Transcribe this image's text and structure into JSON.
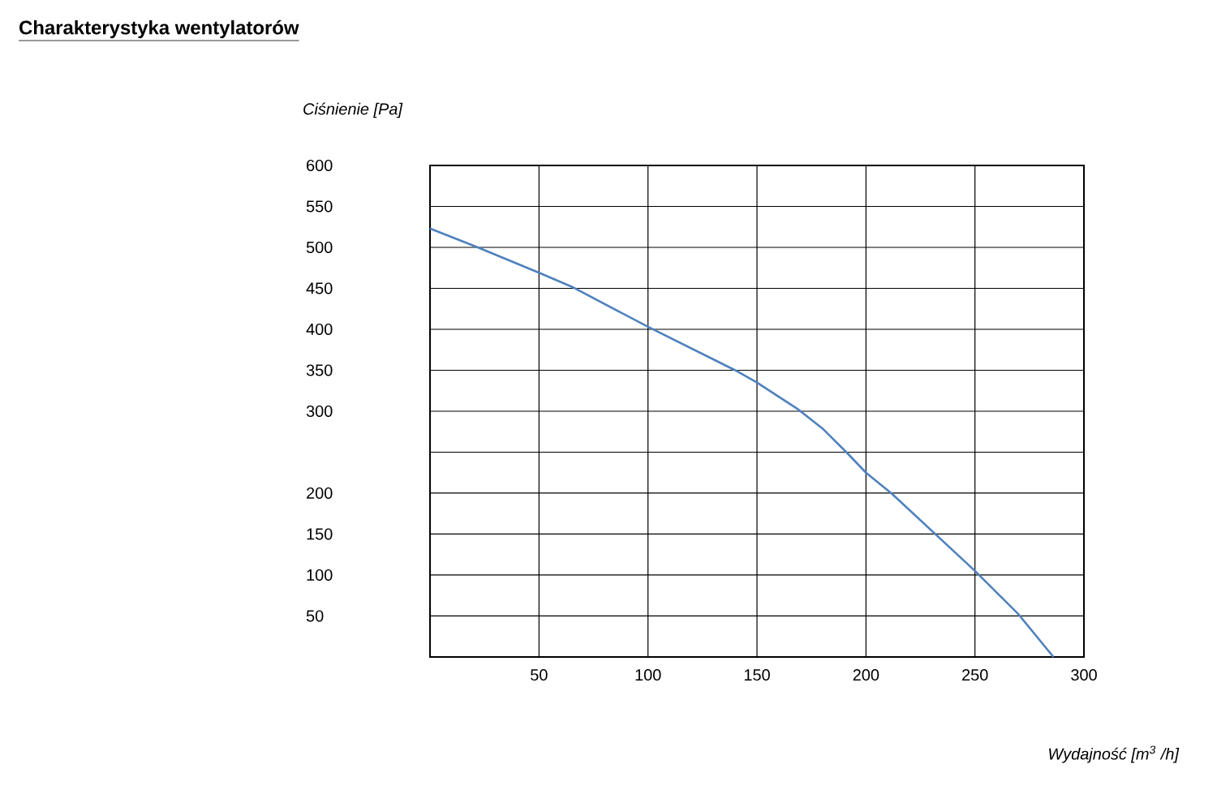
{
  "chart_data": {
    "type": "line",
    "title": "Charakterystyka wentylatorów",
    "xlabel": "Wydajność [m$^{3}$ /h]",
    "ylabel": "Ciśnienie [Pa]",
    "x": [
      0,
      21,
      50,
      65,
      100,
      140,
      150,
      169,
      180,
      191,
      200,
      212,
      231,
      250,
      270,
      286
    ],
    "series": [
      {
        "color": "#4f81bd",
        "values": [
          523,
          501,
          469,
          452,
          403,
          350,
          335,
          302,
          279,
          250,
          225,
          199,
          152,
          105,
          52,
          0
        ]
      }
    ],
    "xlim": [
      0,
      300
    ],
    "ylim": [
      0,
      600
    ],
    "xticks": [
      50,
      100,
      150,
      200,
      250,
      300
    ],
    "yticks": [
      {
        "value": 0,
        "label": null
      },
      50,
      100,
      150,
      200,
      {
        "value": 250,
        "label": null
      },
      300,
      350,
      400,
      450,
      500,
      550,
      600
    ],
    "grid": true,
    "marker": "none",
    "line_style": "solid"
  }
}
